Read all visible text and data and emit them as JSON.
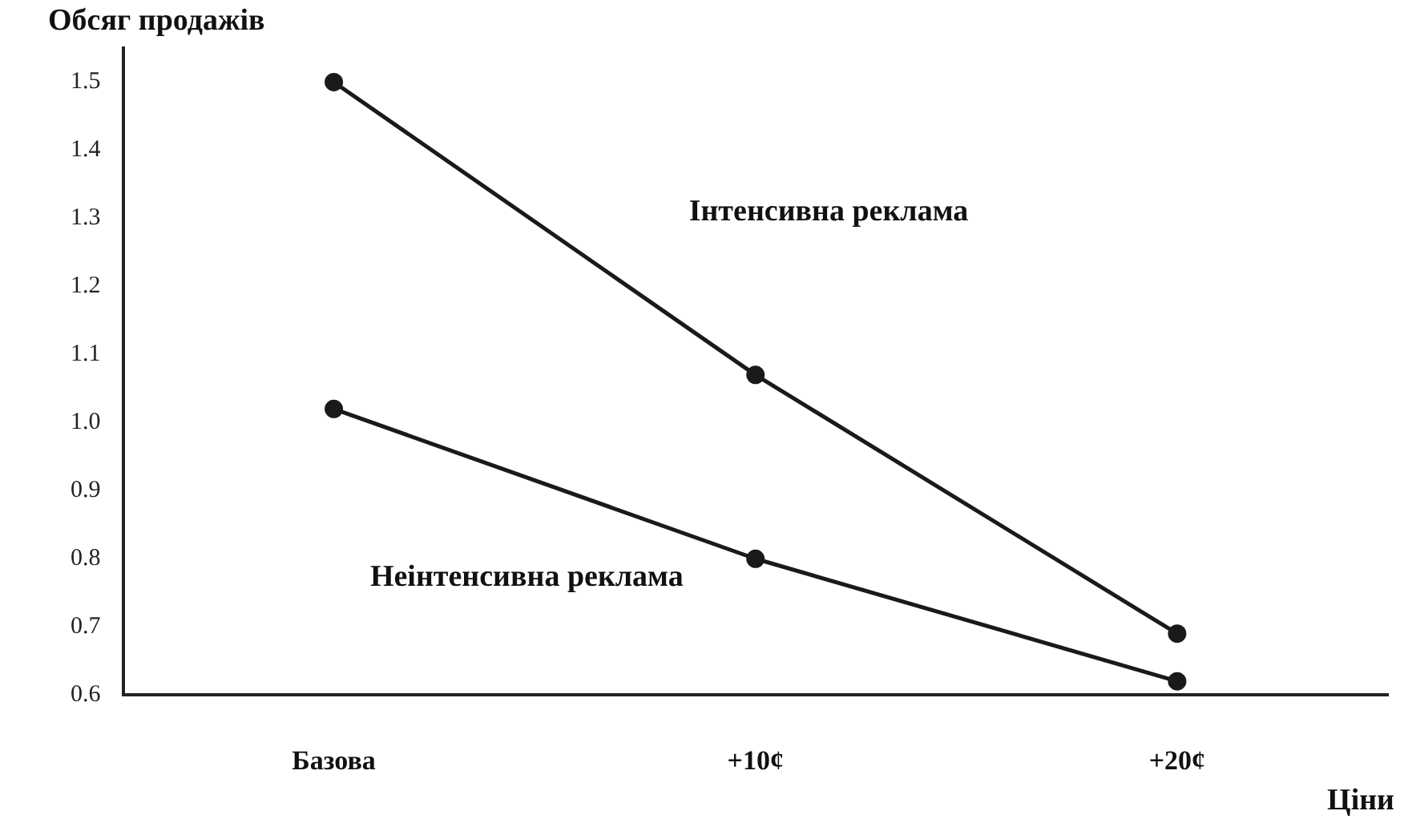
{
  "chart_data": {
    "type": "line",
    "ylabel": "Обсяг продажів",
    "xlabel": "Ціни",
    "categories": [
      "Базова",
      "+10¢",
      "+20¢"
    ],
    "series": [
      {
        "name": "Інтенсивна реклама",
        "color": "#1a1a1a",
        "values": [
          1.5,
          1.07,
          0.69
        ]
      },
      {
        "name": "Неінтенсивна реклама",
        "color": "#1a1a1a",
        "values": [
          1.02,
          0.8,
          0.62
        ]
      }
    ],
    "ylim": [
      0.6,
      1.55
    ],
    "yticks": [
      0.6,
      0.7,
      0.8,
      0.9,
      {
        "value": 1.0,
        "label": "1.0"
      },
      1.1,
      1.2,
      1.3,
      1.4,
      1.5
    ],
    "grid": false,
    "legend": false,
    "marker": "circle",
    "line_style": "solid"
  }
}
